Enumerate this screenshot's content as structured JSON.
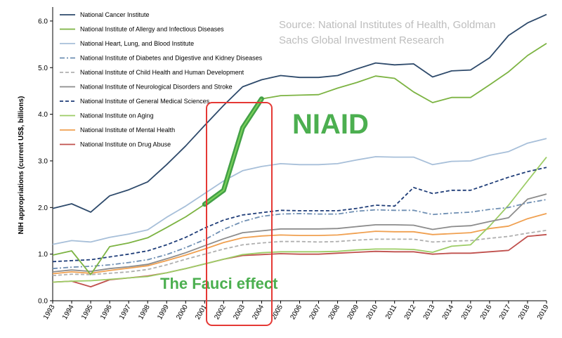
{
  "chart_data": {
    "type": "line",
    "title": "",
    "xlabel": "",
    "ylabel": "NIH appropriations (current US$, billions)",
    "ylim": [
      0,
      6.3
    ],
    "yticks": [
      "0.0",
      "1.0",
      "2.0",
      "3.0",
      "4.0",
      "5.0",
      "6.0"
    ],
    "grid": false,
    "legend_position": "top-left",
    "source": "Source: National Institutes of Health, Goldman Sachs Global Investment Research",
    "annotations": {
      "niaid_label": "NIAID",
      "fauci_label": "The Fauci effect",
      "highlight_years": [
        "2001",
        "2004"
      ]
    },
    "x": [
      "1993",
      "1994",
      "1995",
      "1996",
      "1997",
      "1998",
      "1999",
      "2000",
      "2001",
      "2002",
      "2003",
      "2004",
      "2005",
      "2006",
      "2007",
      "2008",
      "2009",
      "2010",
      "2011",
      "2012",
      "2013",
      "2014",
      "2015",
      "2016",
      "2017",
      "2018",
      "2019"
    ],
    "series": [
      {
        "name": "National Cancer Institute",
        "color": "#2e4a6b",
        "dash": "solid",
        "values": [
          1.98,
          2.08,
          1.9,
          2.25,
          2.38,
          2.55,
          2.92,
          3.32,
          3.76,
          4.19,
          4.59,
          4.74,
          4.83,
          4.79,
          4.79,
          4.83,
          4.97,
          5.1,
          5.06,
          5.08,
          4.8,
          4.93,
          4.95,
          5.21,
          5.69,
          5.96,
          6.14
        ]
      },
      {
        "name": "National Institute of Allergy and Infectious Diseases",
        "color": "#7cb342",
        "dash": "solid",
        "values": [
          0.98,
          1.07,
          0.56,
          1.16,
          1.24,
          1.35,
          1.57,
          1.8,
          2.07,
          2.37,
          3.71,
          4.33,
          4.4,
          4.41,
          4.42,
          4.56,
          4.68,
          4.82,
          4.77,
          4.48,
          4.25,
          4.36,
          4.36,
          4.63,
          4.91,
          5.26,
          5.52
        ]
      },
      {
        "name": "National Heart, Lung, and Blood Institute",
        "color": "#a7bfd9",
        "dash": "solid",
        "values": [
          1.21,
          1.29,
          1.26,
          1.36,
          1.43,
          1.52,
          1.79,
          2.03,
          2.3,
          2.57,
          2.79,
          2.88,
          2.94,
          2.92,
          2.92,
          2.94,
          3.02,
          3.09,
          3.08,
          3.08,
          2.92,
          2.99,
          3.0,
          3.12,
          3.2,
          3.38,
          3.48
        ]
      },
      {
        "name": "National Institute of Diabetes and Digestive and Kidney Diseases",
        "color": "#6f8fb3",
        "dash": "dashdot",
        "values": [
          0.69,
          0.72,
          0.74,
          0.77,
          0.82,
          0.88,
          0.99,
          1.14,
          1.31,
          1.53,
          1.7,
          1.81,
          1.86,
          1.87,
          1.86,
          1.86,
          1.92,
          1.95,
          1.94,
          1.94,
          1.85,
          1.88,
          1.9,
          1.96,
          2.0,
          2.1,
          2.17
        ]
      },
      {
        "name": "National Institute of Child Health and Human Development",
        "color": "#b0b0b0",
        "dash": "dashed",
        "values": [
          0.54,
          0.57,
          0.56,
          0.59,
          0.62,
          0.67,
          0.77,
          0.89,
          1.0,
          1.11,
          1.2,
          1.24,
          1.27,
          1.27,
          1.26,
          1.27,
          1.3,
          1.32,
          1.32,
          1.32,
          1.26,
          1.28,
          1.29,
          1.34,
          1.38,
          1.45,
          1.51
        ]
      },
      {
        "name": "National Institute of Neurological Disorders and Stroke",
        "color": "#8c8c8c",
        "dash": "solid",
        "values": [
          0.62,
          0.66,
          0.63,
          0.69,
          0.73,
          0.78,
          0.9,
          1.03,
          1.18,
          1.33,
          1.46,
          1.5,
          1.54,
          1.54,
          1.54,
          1.55,
          1.59,
          1.63,
          1.63,
          1.62,
          1.53,
          1.59,
          1.61,
          1.7,
          1.78,
          2.18,
          2.29
        ]
      },
      {
        "name": "National Institute of General Medical Sciences",
        "color": "#1f3d78",
        "dash": "dashed",
        "values": [
          0.84,
          0.86,
          0.88,
          0.94,
          1.0,
          1.07,
          1.2,
          1.36,
          1.56,
          1.73,
          1.84,
          1.89,
          1.94,
          1.93,
          1.93,
          1.93,
          1.98,
          2.05,
          2.03,
          2.43,
          2.3,
          2.37,
          2.37,
          2.51,
          2.65,
          2.77,
          2.86
        ]
      },
      {
        "name": "National Institute on Aging",
        "color": "#9ccc65",
        "dash": "solid",
        "values": [
          0.4,
          0.42,
          0.43,
          0.46,
          0.49,
          0.52,
          0.6,
          0.69,
          0.79,
          0.89,
          0.99,
          1.03,
          1.05,
          1.05,
          1.05,
          1.06,
          1.09,
          1.11,
          1.11,
          1.1,
          1.04,
          1.17,
          1.2,
          1.6,
          2.05,
          2.57,
          3.08
        ]
      },
      {
        "name": "National Institute of Mental Health",
        "color": "#f0a050",
        "dash": "solid",
        "values": [
          0.58,
          0.62,
          0.59,
          0.65,
          0.7,
          0.75,
          0.86,
          0.98,
          1.11,
          1.25,
          1.35,
          1.39,
          1.41,
          1.4,
          1.4,
          1.41,
          1.45,
          1.49,
          1.48,
          1.48,
          1.42,
          1.44,
          1.46,
          1.55,
          1.6,
          1.76,
          1.87
        ]
      },
      {
        "name": "National Institute on Drug Abuse",
        "color": "#c0504d",
        "dash": "solid",
        "values": [
          0.4,
          0.42,
          0.3,
          0.45,
          0.49,
          0.53,
          0.6,
          0.69,
          0.79,
          0.89,
          0.97,
          0.99,
          1.01,
          1.0,
          1.0,
          1.02,
          1.04,
          1.06,
          1.05,
          1.05,
          1.0,
          1.02,
          1.02,
          1.05,
          1.08,
          1.38,
          1.42
        ]
      }
    ]
  }
}
